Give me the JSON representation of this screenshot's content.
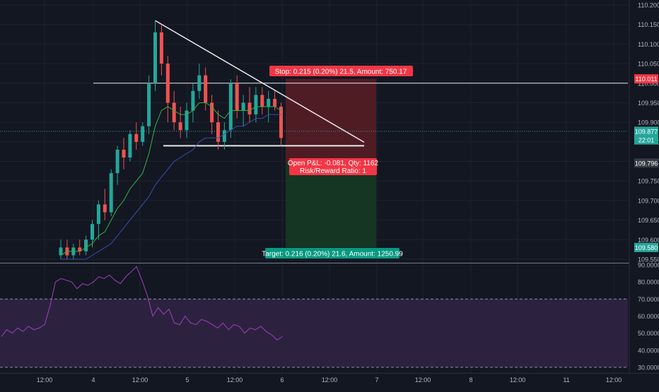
{
  "colors": {
    "background": "#131722",
    "grid": "#1e222d",
    "up_candle": "#26a69a",
    "down_candle": "#ef5350",
    "axis_text": "#b2b5be",
    "white_line": "#e8e8e8",
    "ema_fast": "#2fb344",
    "ema_slow": "#3b4ea8",
    "rsi_line": "#a23fb8",
    "rsi_band": "#2c2240",
    "stop_zone": "#5c1d24",
    "target_zone": "#163a24",
    "stop_label": "#f23645",
    "target_label": "#089981",
    "price_label_green": "#26a69a",
    "price_label_red": "#f23645",
    "price_label_gray": "#363a45"
  },
  "chart_data": [
    {
      "type": "candlestick",
      "title": "",
      "xlabel": "",
      "ylabel": "",
      "ylim": [
        109.55,
        110.2
      ],
      "x_ticks": [
        "12:00",
        "4",
        "12:00",
        "5",
        "12:00",
        "6",
        "12:00",
        "7",
        "12:00",
        "8",
        "12:00",
        "11",
        "12:00"
      ],
      "y_ticks": [
        "110.200",
        "110.150",
        "110.100",
        "110.050",
        "110.000",
        "109.950",
        "109.900",
        "109.850",
        "109.800",
        "109.750",
        "109.700",
        "109.650",
        "109.600",
        "109.550"
      ],
      "price_labels": [
        {
          "text": "110.011",
          "value": 110.011,
          "style": "red"
        },
        {
          "text": "109.877",
          "value": 109.877,
          "style": "green"
        },
        {
          "text": "22:01",
          "value": 109.855,
          "style": "green"
        },
        {
          "text": "109.796",
          "value": 109.796,
          "style": "gray"
        },
        {
          "text": "109.580",
          "value": 109.58,
          "style": "green"
        }
      ],
      "annotations": {
        "stop_label": "Stop: 0.215 (0.20%) 21.5, Amount: 750.17",
        "target_label": "Target: 0.216 (0.20%) 21.6, Amount: 1250.99",
        "pnl_line1": "Open P&L: -0.081, Qty: 1162",
        "pnl_line2": "Risk/Reward Ratio: 1",
        "position": {
          "entry": 109.796,
          "stop": 110.011,
          "target": 109.58
        },
        "resistance_level": 110.0,
        "support_level": 109.84,
        "current_price": 109.877
      },
      "candles": [
        {
          "o": 109.56,
          "h": 109.6,
          "l": 109.55,
          "c": 109.58
        },
        {
          "o": 109.58,
          "h": 109.6,
          "l": 109.55,
          "c": 109.56
        },
        {
          "o": 109.56,
          "h": 109.59,
          "l": 109.55,
          "c": 109.58
        },
        {
          "o": 109.58,
          "h": 109.6,
          "l": 109.56,
          "c": 109.57
        },
        {
          "o": 109.57,
          "h": 109.61,
          "l": 109.56,
          "c": 109.6
        },
        {
          "o": 109.6,
          "h": 109.65,
          "l": 109.58,
          "c": 109.64
        },
        {
          "o": 109.64,
          "h": 109.7,
          "l": 109.6,
          "c": 109.69
        },
        {
          "o": 109.69,
          "h": 109.73,
          "l": 109.65,
          "c": 109.67
        },
        {
          "o": 109.67,
          "h": 109.78,
          "l": 109.66,
          "c": 109.77
        },
        {
          "o": 109.77,
          "h": 109.84,
          "l": 109.74,
          "c": 109.83
        },
        {
          "o": 109.83,
          "h": 109.86,
          "l": 109.78,
          "c": 109.81
        },
        {
          "o": 109.81,
          "h": 109.88,
          "l": 109.8,
          "c": 109.87
        },
        {
          "o": 109.87,
          "h": 109.9,
          "l": 109.83,
          "c": 109.85
        },
        {
          "o": 109.85,
          "h": 109.9,
          "l": 109.84,
          "c": 109.89
        },
        {
          "o": 109.89,
          "h": 110.02,
          "l": 109.87,
          "c": 110.0
        },
        {
          "o": 110.0,
          "h": 110.16,
          "l": 109.98,
          "c": 110.13
        },
        {
          "o": 110.13,
          "h": 110.15,
          "l": 110.02,
          "c": 110.05
        },
        {
          "o": 110.05,
          "h": 110.07,
          "l": 109.9,
          "c": 109.95
        },
        {
          "o": 109.95,
          "h": 109.98,
          "l": 109.88,
          "c": 109.9
        },
        {
          "o": 109.9,
          "h": 109.94,
          "l": 109.86,
          "c": 109.88
        },
        {
          "o": 109.88,
          "h": 109.95,
          "l": 109.86,
          "c": 109.93
        },
        {
          "o": 109.93,
          "h": 110.0,
          "l": 109.9,
          "c": 109.98
        },
        {
          "o": 109.98,
          "h": 110.05,
          "l": 109.96,
          "c": 110.02
        },
        {
          "o": 110.02,
          "h": 110.04,
          "l": 109.93,
          "c": 109.95
        },
        {
          "o": 109.95,
          "h": 109.97,
          "l": 109.87,
          "c": 109.9
        },
        {
          "o": 109.9,
          "h": 109.93,
          "l": 109.83,
          "c": 109.85
        },
        {
          "o": 109.85,
          "h": 109.9,
          "l": 109.83,
          "c": 109.88
        },
        {
          "o": 109.88,
          "h": 110.01,
          "l": 109.86,
          "c": 110.0
        },
        {
          "o": 110.0,
          "h": 110.02,
          "l": 109.91,
          "c": 109.93
        },
        {
          "o": 109.93,
          "h": 109.97,
          "l": 109.89,
          "c": 109.95
        },
        {
          "o": 109.95,
          "h": 109.99,
          "l": 109.9,
          "c": 109.92
        },
        {
          "o": 109.92,
          "h": 109.99,
          "l": 109.9,
          "c": 109.97
        },
        {
          "o": 109.97,
          "h": 109.99,
          "l": 109.92,
          "c": 109.94
        },
        {
          "o": 109.94,
          "h": 109.98,
          "l": 109.9,
          "c": 109.96
        },
        {
          "o": 109.96,
          "h": 109.98,
          "l": 109.93,
          "c": 109.94
        },
        {
          "o": 109.94,
          "h": 109.95,
          "l": 109.84,
          "c": 109.86
        }
      ],
      "ema_fast": [
        109.56,
        109.57,
        109.57,
        109.57,
        109.58,
        109.59,
        109.61,
        109.62,
        109.65,
        109.68,
        109.7,
        109.73,
        109.75,
        109.77,
        109.82,
        109.89,
        109.93,
        109.94,
        109.93,
        109.92,
        109.92,
        109.93,
        109.95,
        109.95,
        109.94,
        109.92,
        109.91,
        109.93,
        109.93,
        109.93,
        109.93,
        109.94,
        109.94,
        109.94,
        109.94,
        109.93
      ],
      "ema_slow": [
        109.55,
        109.55,
        109.55,
        109.55,
        109.55,
        109.56,
        109.57,
        109.58,
        109.59,
        109.61,
        109.63,
        109.65,
        109.67,
        109.69,
        109.71,
        109.74,
        109.76,
        109.78,
        109.8,
        109.81,
        109.82,
        109.83,
        109.85,
        109.86,
        109.86,
        109.86,
        109.87,
        109.88,
        109.89,
        109.89,
        109.9,
        109.91,
        109.91,
        109.92,
        109.92,
        109.92
      ]
    },
    {
      "type": "line",
      "title": "",
      "xlabel": "",
      "ylabel": "",
      "ylim": [
        30,
        90
      ],
      "y_ticks": [
        "90.0000",
        "80.0000",
        "70.0000",
        "60.0000",
        "50.0000",
        "40.0000",
        "30.0000"
      ],
      "bands": [
        70,
        30
      ],
      "series": [
        {
          "name": "",
          "values": [
            48,
            52,
            50,
            53,
            51,
            54,
            52,
            53,
            55,
            66,
            80,
            82,
            81,
            80,
            76,
            79,
            78,
            80,
            83,
            82,
            84,
            81,
            79,
            83,
            86,
            89,
            81,
            72,
            60,
            65,
            61,
            64,
            56,
            55,
            60,
            56,
            55,
            58,
            57,
            55,
            53,
            56,
            52,
            55,
            54,
            50,
            53,
            52,
            54,
            51,
            49,
            46,
            48
          ]
        }
      ]
    }
  ]
}
